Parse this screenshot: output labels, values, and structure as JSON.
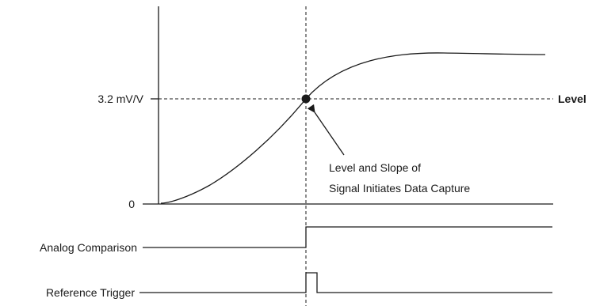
{
  "diagram": {
    "y_axis": {
      "level_label": "3.2 mV/V",
      "zero_label": "0"
    },
    "level_line_label": "Level",
    "annotation": {
      "line1": "Level and Slope of",
      "line2": "Signal Initiates Data Capture"
    },
    "digital_signals": [
      {
        "label": "Analog Comparison"
      },
      {
        "label": "Reference Trigger"
      }
    ]
  }
}
